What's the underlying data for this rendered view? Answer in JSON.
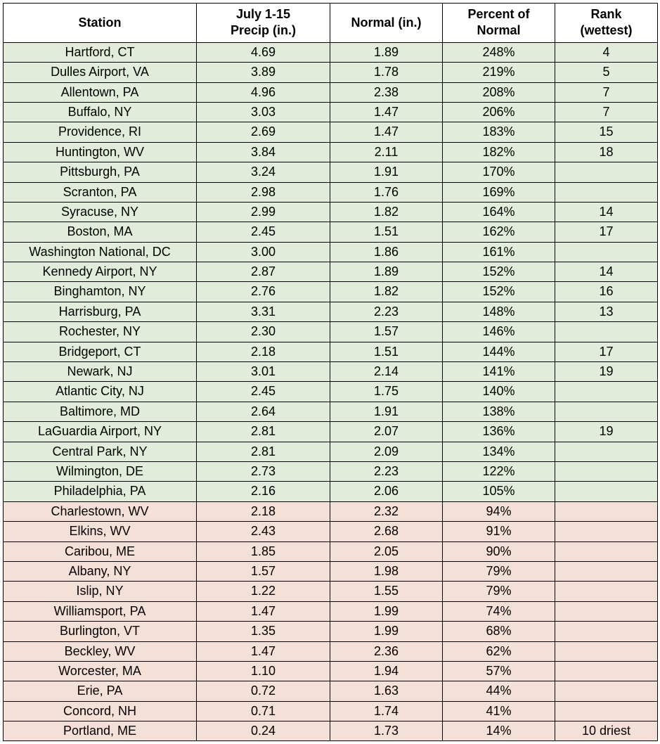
{
  "colors": {
    "above": "#e2ecda",
    "below": "#f4e0d6",
    "header_bg": "#ffffff",
    "border": "#000000",
    "text": "#000000"
  },
  "columns": [
    "Station",
    "July 1-15\nPrecip (in.)",
    "Normal (in.)",
    "Percent of\nNormal",
    "Rank\n(wettest)"
  ],
  "rows": [
    {
      "station": "Hartford, CT",
      "precip": "4.69",
      "normal": "1.89",
      "pct": "248%",
      "rank": "4",
      "band": "above"
    },
    {
      "station": "Dulles Airport, VA",
      "precip": "3.89",
      "normal": "1.78",
      "pct": "219%",
      "rank": "5",
      "band": "above"
    },
    {
      "station": "Allentown, PA",
      "precip": "4.96",
      "normal": "2.38",
      "pct": "208%",
      "rank": "7",
      "band": "above"
    },
    {
      "station": "Buffalo, NY",
      "precip": "3.03",
      "normal": "1.47",
      "pct": "206%",
      "rank": "7",
      "band": "above"
    },
    {
      "station": "Providence, RI",
      "precip": "2.69",
      "normal": "1.47",
      "pct": "183%",
      "rank": "15",
      "band": "above"
    },
    {
      "station": "Huntington, WV",
      "precip": "3.84",
      "normal": "2.11",
      "pct": "182%",
      "rank": "18",
      "band": "above"
    },
    {
      "station": "Pittsburgh, PA",
      "precip": "3.24",
      "normal": "1.91",
      "pct": "170%",
      "rank": "",
      "band": "above"
    },
    {
      "station": "Scranton, PA",
      "precip": "2.98",
      "normal": "1.76",
      "pct": "169%",
      "rank": "",
      "band": "above"
    },
    {
      "station": "Syracuse, NY",
      "precip": "2.99",
      "normal": "1.82",
      "pct": "164%",
      "rank": "14",
      "band": "above"
    },
    {
      "station": "Boston, MA",
      "precip": "2.45",
      "normal": "1.51",
      "pct": "162%",
      "rank": "17",
      "band": "above"
    },
    {
      "station": "Washington National, DC",
      "precip": "3.00",
      "normal": "1.86",
      "pct": "161%",
      "rank": "",
      "band": "above"
    },
    {
      "station": "Kennedy Airport, NY",
      "precip": "2.87",
      "normal": "1.89",
      "pct": "152%",
      "rank": "14",
      "band": "above"
    },
    {
      "station": "Binghamton, NY",
      "precip": "2.76",
      "normal": "1.82",
      "pct": "152%",
      "rank": "16",
      "band": "above"
    },
    {
      "station": "Harrisburg, PA",
      "precip": "3.31",
      "normal": "2.23",
      "pct": "148%",
      "rank": "13",
      "band": "above"
    },
    {
      "station": "Rochester, NY",
      "precip": "2.30",
      "normal": "1.57",
      "pct": "146%",
      "rank": "",
      "band": "above"
    },
    {
      "station": "Bridgeport, CT",
      "precip": "2.18",
      "normal": "1.51",
      "pct": "144%",
      "rank": "17",
      "band": "above"
    },
    {
      "station": "Newark, NJ",
      "precip": "3.01",
      "normal": "2.14",
      "pct": "141%",
      "rank": "19",
      "band": "above"
    },
    {
      "station": "Atlantic City, NJ",
      "precip": "2.45",
      "normal": "1.75",
      "pct": "140%",
      "rank": "",
      "band": "above"
    },
    {
      "station": "Baltimore, MD",
      "precip": "2.64",
      "normal": "1.91",
      "pct": "138%",
      "rank": "",
      "band": "above"
    },
    {
      "station": "LaGuardia Airport, NY",
      "precip": "2.81",
      "normal": "2.07",
      "pct": "136%",
      "rank": "19",
      "band": "above"
    },
    {
      "station": "Central Park, NY",
      "precip": "2.81",
      "normal": "2.09",
      "pct": "134%",
      "rank": "",
      "band": "above"
    },
    {
      "station": "Wilmington, DE",
      "precip": "2.73",
      "normal": "2.23",
      "pct": "122%",
      "rank": "",
      "band": "above"
    },
    {
      "station": "Philadelphia, PA",
      "precip": "2.16",
      "normal": "2.06",
      "pct": "105%",
      "rank": "",
      "band": "above"
    },
    {
      "station": "Charlestown, WV",
      "precip": "2.18",
      "normal": "2.32",
      "pct": "94%",
      "rank": "",
      "band": "below"
    },
    {
      "station": "Elkins, WV",
      "precip": "2.43",
      "normal": "2.68",
      "pct": "91%",
      "rank": "",
      "band": "below"
    },
    {
      "station": "Caribou, ME",
      "precip": "1.85",
      "normal": "2.05",
      "pct": "90%",
      "rank": "",
      "band": "below"
    },
    {
      "station": "Albany, NY",
      "precip": "1.57",
      "normal": "1.98",
      "pct": "79%",
      "rank": "",
      "band": "below"
    },
    {
      "station": "Islip, NY",
      "precip": "1.22",
      "normal": "1.55",
      "pct": "79%",
      "rank": "",
      "band": "below"
    },
    {
      "station": "Williamsport, PA",
      "precip": "1.47",
      "normal": "1.99",
      "pct": "74%",
      "rank": "",
      "band": "below"
    },
    {
      "station": "Burlington, VT",
      "precip": "1.35",
      "normal": "1.99",
      "pct": "68%",
      "rank": "",
      "band": "below"
    },
    {
      "station": "Beckley, WV",
      "precip": "1.47",
      "normal": "2.36",
      "pct": "62%",
      "rank": "",
      "band": "below"
    },
    {
      "station": "Worcester, MA",
      "precip": "1.10",
      "normal": "1.94",
      "pct": "57%",
      "rank": "",
      "band": "below"
    },
    {
      "station": "Erie, PA",
      "precip": "0.72",
      "normal": "1.63",
      "pct": "44%",
      "rank": "",
      "band": "below"
    },
    {
      "station": "Concord, NH",
      "precip": "0.71",
      "normal": "1.74",
      "pct": "41%",
      "rank": "",
      "band": "below"
    },
    {
      "station": "Portland, ME",
      "precip": "0.24",
      "normal": "1.73",
      "pct": "14%",
      "rank": "10 driest",
      "band": "below"
    }
  ]
}
